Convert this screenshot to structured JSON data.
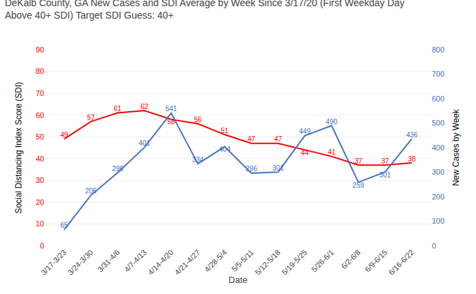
{
  "chart_data": {
    "type": "line",
    "title": "DeKalb County, GA New Cases and SDI Average by Week Since 3/17/20 (First Weekday Day\nAbove 40+ SDI) Target SDI Guess: 40+",
    "x_label": "Date",
    "y_label": "Social Distancing Index Score (SDI)",
    "y2_label": "New Cases by Week",
    "categories": [
      "3/17-3/23",
      "3/24-3/30",
      "3/31-4/6",
      "4/7-4/13",
      "4/14-4/20",
      "4/21-4/27",
      "4/28-5/4",
      "5/5-5/11",
      "5/12-5/18",
      "5/19-5/25",
      "5/26-6/1",
      "6/2-6/8",
      "6/9-6/15",
      "6/16-6/22"
    ],
    "series": [
      {
        "color": "#ff0000",
        "values": [
          49,
          57,
          61,
          62,
          58,
          56,
          51,
          47,
          47,
          44,
          41,
          37,
          37,
          38
        ]
      },
      {
        "color": "#4472c4",
        "values": [
          65,
          206,
          298,
          401,
          541,
          334,
          404,
          296,
          301,
          449,
          490,
          259,
          301,
          436
        ],
        "axis": "y2"
      }
    ],
    "ylim": [
      0,
      90
    ],
    "yticks": [
      0,
      10,
      20,
      30,
      40,
      50,
      60,
      70,
      80,
      90
    ],
    "y2lim": [
      0,
      800
    ],
    "y2ticks": [
      0,
      100,
      200,
      300,
      400,
      500,
      600,
      700,
      800
    ],
    "grid": true,
    "data_labels": true
  }
}
